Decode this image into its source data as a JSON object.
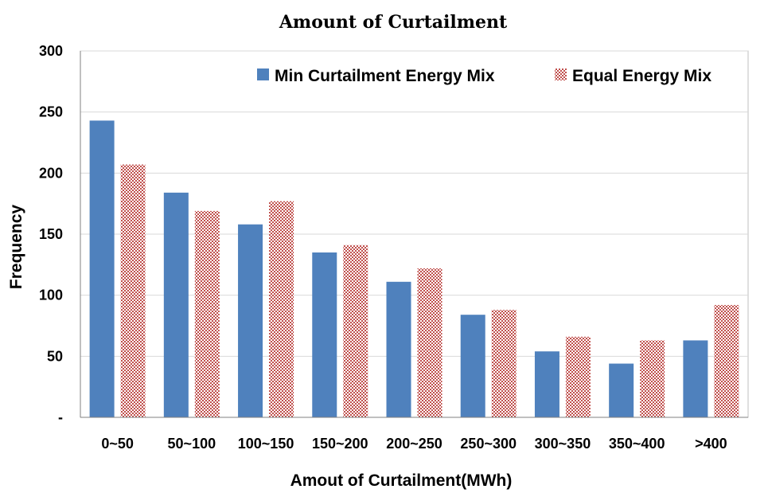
{
  "chart_data": {
    "type": "bar",
    "title": "Amount of Curtailment",
    "xlabel": "Amout of Curtailment(MWh)",
    "ylabel": "Frequency",
    "ylim": [
      0,
      300
    ],
    "yticks": [
      {
        "value": 0,
        "label": "-"
      },
      {
        "value": 50,
        "label": "50"
      },
      {
        "value": 100,
        "label": "100"
      },
      {
        "value": 150,
        "label": "150"
      },
      {
        "value": 200,
        "label": "200"
      },
      {
        "value": 250,
        "label": "250"
      },
      {
        "value": 300,
        "label": "300"
      }
    ],
    "grid": true,
    "legend_position": "top-right",
    "categories": [
      "0~50",
      "50~100",
      "100~150",
      "150~200",
      "200~250",
      "250~300",
      "300~350",
      "350~400",
      ">400"
    ],
    "series": [
      {
        "name": "Min Curtailment Energy Mix",
        "color": "#4F81BD",
        "pattern": "solid",
        "values": [
          243,
          184,
          158,
          135,
          111,
          84,
          54,
          44,
          63
        ]
      },
      {
        "name": "Equal Energy Mix",
        "color": "#C0504D",
        "pattern": "checker",
        "values": [
          207,
          169,
          177,
          141,
          122,
          88,
          66,
          63,
          92
        ]
      }
    ]
  }
}
